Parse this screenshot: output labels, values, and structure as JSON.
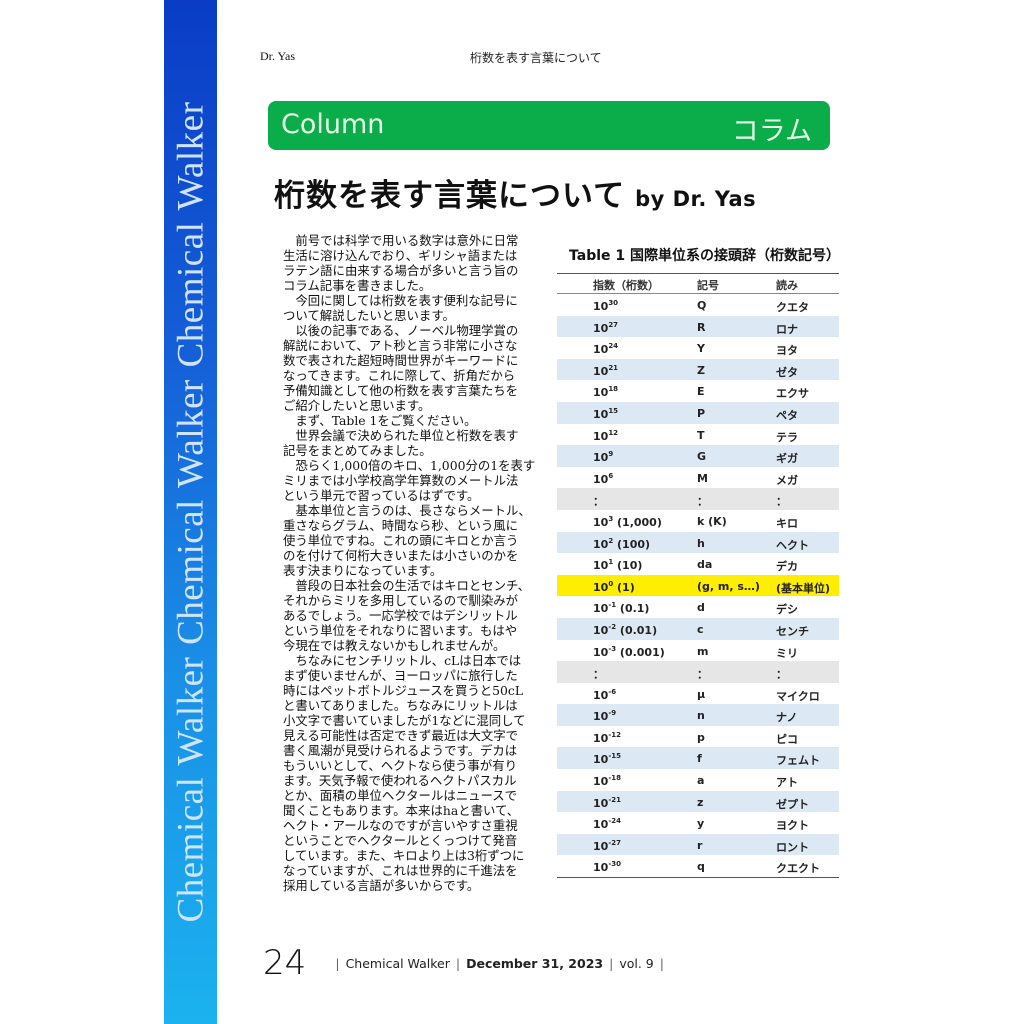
{
  "sidebar": {
    "text": "Chemical Walker   Chemical Walker   Chemical Walker"
  },
  "running_header": {
    "author": "Dr. Yas",
    "title": "桁数を表す言葉について"
  },
  "banner": {
    "left": "Column",
    "right": "コラム"
  },
  "article": {
    "title": "桁数を表す言葉について",
    "byline": "by Dr. Yas"
  },
  "body_lines": [
    "　前号では科学で用いる数字は意外に日常",
    "生活に溶け込んでおり、ギリシャ語または",
    "ラテン語に由来する場合が多いと言う旨の",
    "コラム記事を書きました。",
    "　今回に関しては桁数を表す便利な記号に",
    "ついて解説したいと思います。",
    "　以後の記事である、ノーベル物理学賞の",
    "解説において、アト秒と言う非常に小さな",
    "数で表された超短時間世界がキーワードに",
    "なってきます。これに際して、折角だから",
    "予備知識として他の桁数を表す言葉たちを",
    "ご紹介したいと思います。",
    "　まず、Table 1をご覧ください。",
    "　世界会議で決められた単位と桁数を表す",
    "記号をまとめてみました。",
    "　恐らく1,000倍のキロ、1,000分の1を表す",
    "ミリまでは小学校高学年算数のメートル法",
    "という単元で習っているはずです。",
    "　基本単位と言うのは、長さならメートル、",
    "重さならグラム、時間なら秒、という風に",
    "使う単位ですね。これの頭にキロとか言う",
    "のを付けて何桁大きいまたは小さいのかを",
    "表す決まりになっています。",
    "　普段の日本社会の生活ではキロとセンチ、",
    "それからミリを多用しているので馴染みが",
    "あるでしょう。一応学校ではデシリットル",
    "という単位をそれなりに習います。もはや",
    "今現在では教えないかもしれませんが。",
    "　ちなみにセンチリットル、cLは日本では",
    "まず使いませんが、ヨーロッパに旅行した",
    "時にはペットボトルジュースを買うと50cL",
    "と書いてありました。ちなみにリットルは",
    "小文字で書いていましたが1などに混同して",
    "見える可能性は否定できず最近は大文字で",
    "書く風潮が見受けられるようです。デカは",
    "もういいとして、ヘクトなら使う事が有り",
    "ます。天気予報で使われるヘクトパスカル",
    "とか、面積の単位ヘクタールはニュースで",
    "聞くこともあります。本来はhaと書いて、",
    "ヘクト・アールなのですが言いやすさ重視",
    "ということでヘクタールとくっつけて発音",
    "しています。また、キロより上は3桁ずつに",
    "なっていますが、これは世界的に千進法を",
    "採用している言語が多いからです。"
  ],
  "table": {
    "caption": "Table 1 国際単位系の接頭辞（桁数記号）",
    "headers": [
      "指数（桁数）",
      "記号",
      "読み"
    ],
    "rows": [
      {
        "base": "10",
        "exp": "30",
        "extra": "",
        "symbol": "Q",
        "reading": "クエタ",
        "shade": "white"
      },
      {
        "base": "10",
        "exp": "27",
        "extra": "",
        "symbol": "R",
        "reading": "ロナ",
        "shade": "blue"
      },
      {
        "base": "10",
        "exp": "24",
        "extra": "",
        "symbol": "Y",
        "reading": "ヨタ",
        "shade": "white"
      },
      {
        "base": "10",
        "exp": "21",
        "extra": "",
        "symbol": "Z",
        "reading": "ゼタ",
        "shade": "blue"
      },
      {
        "base": "10",
        "exp": "18",
        "extra": "",
        "symbol": "E",
        "reading": "エクサ",
        "shade": "white"
      },
      {
        "base": "10",
        "exp": "15",
        "extra": "",
        "symbol": "P",
        "reading": "ペタ",
        "shade": "blue"
      },
      {
        "base": "10",
        "exp": "12",
        "extra": "",
        "symbol": "T",
        "reading": "テラ",
        "shade": "white"
      },
      {
        "base": "10",
        "exp": "9",
        "extra": "",
        "symbol": "G",
        "reading": "ギガ",
        "shade": "blue"
      },
      {
        "base": "10",
        "exp": "6",
        "extra": "",
        "symbol": "M",
        "reading": "メガ",
        "shade": "white"
      },
      {
        "base": "：",
        "exp": "",
        "extra": "",
        "symbol": "：",
        "reading": "：",
        "shade": "gray"
      },
      {
        "base": "10",
        "exp": "3",
        "extra": " (1,000)",
        "symbol": "k (K)",
        "reading": "キロ",
        "shade": "white"
      },
      {
        "base": "10",
        "exp": "2",
        "extra": " (100)",
        "symbol": "h",
        "reading": "ヘクト",
        "shade": "blue"
      },
      {
        "base": "10",
        "exp": "1",
        "extra": " (10)",
        "symbol": "da",
        "reading": "デカ",
        "shade": "white"
      },
      {
        "base": "10",
        "exp": "0",
        "extra": " (1)",
        "symbol": "(g, m, s…)",
        "reading": "(基本単位)",
        "shade": "yellow"
      },
      {
        "base": "10",
        "exp": "-1",
        "extra": " (0.1)",
        "symbol": "d",
        "reading": "デシ",
        "shade": "white"
      },
      {
        "base": "10",
        "exp": "-2",
        "extra": " (0.01)",
        "symbol": "c",
        "reading": "センチ",
        "shade": "blue"
      },
      {
        "base": "10",
        "exp": "-3",
        "extra": " (0.001)",
        "symbol": "m",
        "reading": "ミリ",
        "shade": "white"
      },
      {
        "base": "：",
        "exp": "",
        "extra": "",
        "symbol": "：",
        "reading": "：",
        "shade": "gray"
      },
      {
        "base": "10",
        "exp": "-6",
        "extra": "",
        "symbol": "μ",
        "reading": "マイクロ",
        "shade": "white"
      },
      {
        "base": "10",
        "exp": "-9",
        "extra": "",
        "symbol": "n",
        "reading": "ナノ",
        "shade": "blue"
      },
      {
        "base": "10",
        "exp": "-12",
        "extra": "",
        "symbol": "p",
        "reading": "ピコ",
        "shade": "white"
      },
      {
        "base": "10",
        "exp": "-15",
        "extra": "",
        "symbol": "f",
        "reading": "フェムト",
        "shade": "blue"
      },
      {
        "base": "10",
        "exp": "-18",
        "extra": "",
        "symbol": "a",
        "reading": "アト",
        "shade": "white"
      },
      {
        "base": "10",
        "exp": "-21",
        "extra": "",
        "symbol": "z",
        "reading": "ゼプト",
        "shade": "blue"
      },
      {
        "base": "10",
        "exp": "-24",
        "extra": "",
        "symbol": "y",
        "reading": "ヨクト",
        "shade": "white"
      },
      {
        "base": "10",
        "exp": "-27",
        "extra": "",
        "symbol": "r",
        "reading": "ロント",
        "shade": "blue"
      },
      {
        "base": "10",
        "exp": "-30",
        "extra": "",
        "symbol": "q",
        "reading": "クエクト",
        "shade": "white"
      }
    ]
  },
  "footer": {
    "page": "24",
    "magazine": "Chemical Walker",
    "date": "December 31, 2023",
    "volume": "vol. 9",
    "separator": "|"
  },
  "colors": {
    "banner": "#0aad4a",
    "sidebar_top": "#0a3cc6",
    "sidebar_bottom": "#1bb2ef",
    "highlight": "#ffee00",
    "row_alt": "#dce9f5"
  }
}
